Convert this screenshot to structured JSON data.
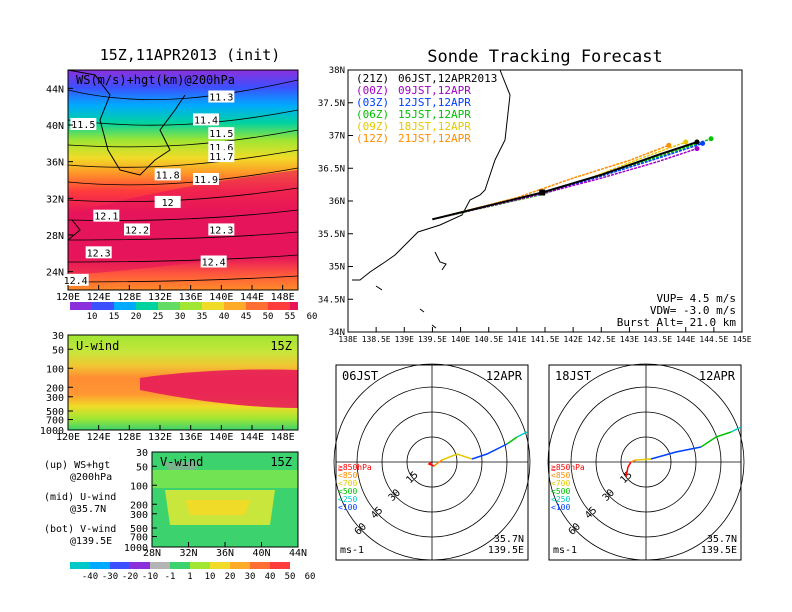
{
  "left": {
    "title": "15Z,11APR2013 (init)",
    "top_panel": {
      "label": "WS(m/s)+hgt(km)@200hPa",
      "x_ticks": [
        "120E",
        "124E",
        "128E",
        "132E",
        "136E",
        "140E",
        "144E",
        "148E"
      ],
      "y_ticks": [
        "44N",
        "40N",
        "36N",
        "32N",
        "28N",
        "24N"
      ],
      "contours": [
        {
          "label": "11.3",
          "x": "140E",
          "y": "43N"
        },
        {
          "label": "11.4",
          "x": "138E",
          "y": "40.5N"
        },
        {
          "label": "11.5",
          "x": "122E",
          "y": "40N"
        },
        {
          "label": "11.5",
          "x": "140E",
          "y": "39N"
        },
        {
          "label": "11.6",
          "x": "140E",
          "y": "37.5N"
        },
        {
          "label": "11.7",
          "x": "140E",
          "y": "36.5N"
        },
        {
          "label": "11.8",
          "x": "133E",
          "y": "34.5N"
        },
        {
          "label": "11.9",
          "x": "138E",
          "y": "34N"
        },
        {
          "label": "12",
          "x": "133E",
          "y": "31.5N"
        },
        {
          "label": "12.1",
          "x": "125E",
          "y": "30N"
        },
        {
          "label": "12.2",
          "x": "129E",
          "y": "28.5N"
        },
        {
          "label": "12.3",
          "x": "140E",
          "y": "28.5N"
        },
        {
          "label": "12.3",
          "x": "124E",
          "y": "26N"
        },
        {
          "label": "12.4",
          "x": "139E",
          "y": "25N"
        },
        {
          "label": "12.4",
          "x": "121E",
          "y": "23N"
        }
      ],
      "colorbar": [
        "10",
        "15",
        "20",
        "25",
        "30",
        "35",
        "40",
        "45",
        "50",
        "55",
        "60"
      ]
    },
    "mid_panel": {
      "label": "U-wind",
      "time": "15Z",
      "y_ticks": [
        "30",
        "50",
        "100",
        "200",
        "300",
        "500",
        "700",
        "1000"
      ],
      "x_ticks": [
        "120E",
        "124E",
        "128E",
        "132E",
        "136E",
        "140E",
        "144E",
        "148E"
      ]
    },
    "bot_panel": {
      "label": "V-wind",
      "time": "15Z",
      "y_ticks": [
        "30",
        "50",
        "100",
        "200",
        "300",
        "500",
        "700",
        "1000"
      ],
      "x_ticks": [
        "28N",
        "32N",
        "36N",
        "40N",
        "44N"
      ]
    },
    "legend_lines": [
      {
        "a": "(up) WS+hgt",
        "b": "@200hPa"
      },
      {
        "a": "(mid) U-wind",
        "b": "@35.7N"
      },
      {
        "a": "(bot) V-wind",
        "b": "@139.5E"
      }
    ],
    "colorbar2": [
      "-40",
      "-30",
      "-20",
      "-10",
      "-1",
      "1",
      "10",
      "20",
      "30",
      "40",
      "50",
      "60"
    ]
  },
  "right": {
    "title": "Sonde Tracking Forecast",
    "map": {
      "y_ticks": [
        "38N",
        "37.5N",
        "37N",
        "36.5N",
        "36N",
        "35.5N",
        "35N",
        "34.5N",
        "34N"
      ],
      "x_ticks": [
        "138E",
        "138.5E",
        "139E",
        "139.5E",
        "140E",
        "140.5E",
        "141E",
        "141.5E",
        "142E",
        "142.5E",
        "143E",
        "143.5E",
        "144E",
        "144.5E",
        "145E"
      ],
      "legend": [
        {
          "code": "(21Z)",
          "time": "06JST,12APR2013",
          "color": "#000000"
        },
        {
          "code": "(00Z)",
          "time": "09JST,12APR",
          "color": "#a000c8"
        },
        {
          "code": "(03Z)",
          "time": "12JST,12APR",
          "color": "#0040ff"
        },
        {
          "code": "(06Z)",
          "time": "15JST,12APR",
          "color": "#00c000"
        },
        {
          "code": "(09Z)",
          "time": "18JST,12APR",
          "color": "#e6c800"
        },
        {
          "code": "(12Z)",
          "time": "21JST,12APR",
          "color": "#ff8c00"
        }
      ],
      "vup": "VUP= 4.5 m/s",
      "vdw": "VDW= -3.0 m/s",
      "burst": "Burst Alt= 21.0 km"
    },
    "hodo_left": {
      "time": "06JST",
      "date": "12APR",
      "lat": "35.7N",
      "lon": "139.5E",
      "unit": "ms-1"
    },
    "hodo_right": {
      "time": "18JST",
      "date": "12APR",
      "lat": "35.7N",
      "lon": "139.5E",
      "unit": "ms-1"
    },
    "rings": [
      "15",
      "30",
      "45",
      "60"
    ],
    "levels": [
      {
        "label": "≧850hPa",
        "color": "#ff0000"
      },
      {
        "label": "<850",
        "color": "#ff8c00"
      },
      {
        "label": "<700",
        "color": "#e6c800"
      },
      {
        "label": "<500",
        "color": "#00c000"
      },
      {
        "label": "<250",
        "color": "#00c8c8"
      },
      {
        "label": "<100",
        "color": "#0040ff"
      }
    ]
  },
  "chart_data": [
    {
      "type": "heatmap",
      "title": "15Z,11APR2013 (init)",
      "subtitle": "WS(m/s)+hgt(km)@200hPa",
      "xlim": [
        120,
        150
      ],
      "ylim": [
        22,
        46
      ]
    },
    {
      "type": "heatmap",
      "title": "U-wind",
      "xlim": [
        120,
        150
      ],
      "ylim": [
        1000,
        30
      ]
    },
    {
      "type": "heatmap",
      "title": "V-wind",
      "xlim": [
        28,
        44
      ],
      "ylim": [
        1000,
        30
      ]
    },
    {
      "type": "line",
      "title": "Sonde Tracking Forecast",
      "xlim": [
        138,
        145
      ],
      "ylim": [
        34,
        38
      ],
      "series": [
        {
          "name": "(21Z) 06JST,12APR2013",
          "x": [
            139.5,
            141.45,
            142.5,
            143.5,
            144.2
          ],
          "y": [
            35.72,
            36.13,
            36.4,
            36.7,
            36.9
          ]
        },
        {
          "name": "(00Z) 09JST,12APR",
          "x": [
            139.5,
            141.4,
            142.5,
            143.5,
            144.2
          ],
          "y": [
            35.72,
            36.1,
            36.35,
            36.6,
            36.8
          ]
        },
        {
          "name": "(03Z) 12JST,12APR",
          "x": [
            139.5,
            141.4,
            142.5,
            143.5,
            144.3
          ],
          "y": [
            35.72,
            36.1,
            36.38,
            36.65,
            36.88
          ]
        },
        {
          "name": "(06Z) 15JST,12APR",
          "x": [
            139.5,
            141.45,
            142.5,
            143.6,
            144.45
          ],
          "y": [
            35.72,
            36.1,
            36.4,
            36.7,
            36.95
          ]
        },
        {
          "name": "(09Z) 18JST,12APR",
          "x": [
            139.5,
            141.2,
            142.3,
            143.2,
            144.0
          ],
          "y": [
            35.72,
            36.05,
            36.35,
            36.65,
            36.9
          ]
        },
        {
          "name": "(12Z) 21JST,12APR",
          "x": [
            139.5,
            141.0,
            142.0,
            143.0,
            143.7
          ],
          "y": [
            35.72,
            36.05,
            36.35,
            36.62,
            36.85
          ]
        }
      ]
    }
  ]
}
